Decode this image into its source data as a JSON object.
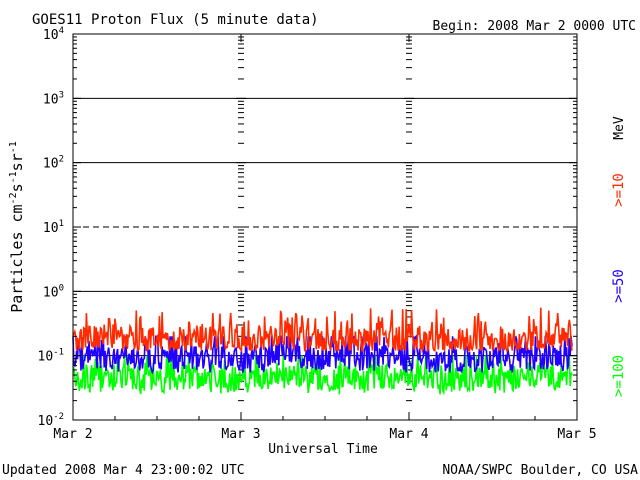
{
  "chart_data": {
    "type": "line",
    "title": "GOES11 Proton Flux (5 minute data)",
    "begin_label": "Begin: 2008 Mar 2 0000 UTC",
    "xlabel": "Universal Time",
    "ylabel_main": "Particles cm",
    "ylabel_sup1": "-2",
    "ylabel_mid1": "s",
    "ylabel_sup2": "-1",
    "ylabel_mid2": "sr",
    "ylabel_sup3": "-1",
    "x_ticks": [
      "Mar 2",
      "Mar 3",
      "Mar 4",
      "Mar 5"
    ],
    "x_range_days": [
      0,
      3
    ],
    "y_scale": "log",
    "ylim": [
      0.01,
      10000
    ],
    "y_ticks": [
      {
        "base": "10",
        "exp": "4"
      },
      {
        "base": "10",
        "exp": "3"
      },
      {
        "base": "10",
        "exp": "2"
      },
      {
        "base": "10",
        "exp": "1"
      },
      {
        "base": "10",
        "exp": "0"
      },
      {
        "base": "10",
        "exp": "-1"
      },
      {
        "base": "10",
        "exp": "-2"
      }
    ],
    "y_tick_values": [
      10000,
      1000,
      100,
      10,
      1,
      0.1,
      0.01
    ],
    "reference_lines": [
      {
        "value": 1000,
        "style": "solid"
      },
      {
        "value": 100,
        "style": "solid"
      },
      {
        "value": 10,
        "style": "dashed"
      },
      {
        "value": 1,
        "style": "solid"
      },
      {
        "value": 0.1,
        "style": "solid"
      }
    ],
    "series": [
      {
        "name": ">=10",
        "color": "#ff2a00",
        "typical": 0.18,
        "low": 0.12,
        "high": 0.6,
        "x_days": [
          0,
          0.25,
          0.5,
          0.75,
          1.0,
          1.25,
          1.5,
          1.75,
          2.0,
          2.25,
          2.5,
          2.75,
          2.97
        ],
        "values": [
          0.18,
          0.2,
          0.17,
          0.19,
          0.18,
          0.2,
          0.17,
          0.18,
          0.19,
          0.17,
          0.18,
          0.19,
          0.2
        ]
      },
      {
        "name": ">=50",
        "color": "#2200ff",
        "typical": 0.09,
        "low": 0.055,
        "high": 0.2,
        "x_days": [
          0,
          0.25,
          0.5,
          0.75,
          1.0,
          1.25,
          1.5,
          1.75,
          2.0,
          2.25,
          2.5,
          2.75,
          2.97
        ],
        "values": [
          0.09,
          0.1,
          0.085,
          0.095,
          0.09,
          0.1,
          0.088,
          0.09,
          0.095,
          0.085,
          0.09,
          0.092,
          0.1
        ]
      },
      {
        "name": ">=100",
        "color": "#00ff00",
        "typical": 0.045,
        "low": 0.025,
        "high": 0.1,
        "x_days": [
          0,
          0.25,
          0.5,
          0.75,
          1.0,
          1.25,
          1.5,
          1.75,
          2.0,
          2.25,
          2.5,
          2.75,
          2.97
        ],
        "values": [
          0.045,
          0.05,
          0.042,
          0.048,
          0.045,
          0.05,
          0.044,
          0.046,
          0.048,
          0.043,
          0.045,
          0.047,
          0.05
        ]
      }
    ],
    "legend_unit": "MeV",
    "legend_placement": "right",
    "grid": false
  },
  "footer": {
    "updated": "Updated 2008 Mar  4 23:00:02 UTC",
    "source": "NOAA/SWPC Boulder, CO USA"
  }
}
